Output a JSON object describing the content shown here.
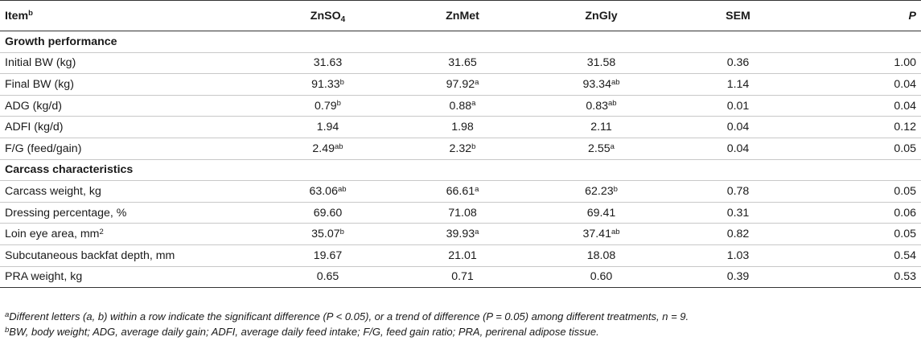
{
  "header": {
    "item": "Item",
    "item_sup": "b",
    "znso4_base": "ZnSO",
    "znso4_sub": "4",
    "znmet": "ZnMet",
    "zngly": "ZnGly",
    "sem": "SEM",
    "p": "P"
  },
  "sections": [
    {
      "title": "Growth performance",
      "rows": [
        {
          "item": "Initial BW (kg)",
          "item_sup": "",
          "znso4": "31.63",
          "znso4_sup": "",
          "znmet": "31.65",
          "znmet_sup": "",
          "zngly": "31.58",
          "zngly_sup": "",
          "sem": "0.36",
          "p": "1.00"
        },
        {
          "item": "Final BW (kg)",
          "item_sup": "",
          "znso4": "91.33",
          "znso4_sup": "b",
          "znmet": "97.92",
          "znmet_sup": "a",
          "zngly": "93.34",
          "zngly_sup": "ab",
          "sem": "1.14",
          "p": "0.04"
        },
        {
          "item": "ADG (kg/d)",
          "item_sup": "",
          "znso4": "0.79",
          "znso4_sup": "b",
          "znmet": "0.88",
          "znmet_sup": "a",
          "zngly": "0.83",
          "zngly_sup": "ab",
          "sem": "0.01",
          "p": "0.04"
        },
        {
          "item": "ADFI (kg/d)",
          "item_sup": "",
          "znso4": "1.94",
          "znso4_sup": "",
          "znmet": "1.98",
          "znmet_sup": "",
          "zngly": "2.11",
          "zngly_sup": "",
          "sem": "0.04",
          "p": "0.12"
        },
        {
          "item": "F/G (feed/gain)",
          "item_sup": "",
          "znso4": "2.49",
          "znso4_sup": "ab",
          "znmet": "2.32",
          "znmet_sup": "b",
          "zngly": "2.55",
          "zngly_sup": "a",
          "sem": "0.04",
          "p": "0.05"
        }
      ]
    },
    {
      "title": "Carcass characteristics",
      "rows": [
        {
          "item": "Carcass weight, kg",
          "item_sup": "",
          "znso4": "63.06",
          "znso4_sup": "ab",
          "znmet": "66.61",
          "znmet_sup": "a",
          "zngly": "62.23",
          "zngly_sup": "b",
          "sem": "0.78",
          "p": "0.05"
        },
        {
          "item": "Dressing percentage, %",
          "item_sup": "",
          "znso4": "69.60",
          "znso4_sup": "",
          "znmet": "71.08",
          "znmet_sup": "",
          "zngly": "69.41",
          "zngly_sup": "",
          "sem": "0.31",
          "p": "0.06"
        },
        {
          "item": "Loin eye area, mm",
          "item_sup": "2",
          "znso4": "35.07",
          "znso4_sup": "b",
          "znmet": "39.93",
          "znmet_sup": "a",
          "zngly": "37.41",
          "zngly_sup": "ab",
          "sem": "0.82",
          "p": "0.05"
        },
        {
          "item": "Subcutaneous backfat depth, mm",
          "item_sup": "",
          "znso4": "19.67",
          "znso4_sup": "",
          "znmet": "21.01",
          "znmet_sup": "",
          "zngly": "18.08",
          "zngly_sup": "",
          "sem": "1.03",
          "p": "0.54"
        },
        {
          "item": "PRA weight, kg",
          "item_sup": "",
          "znso4": "0.65",
          "znso4_sup": "",
          "znmet": "0.71",
          "znmet_sup": "",
          "zngly": "0.60",
          "zngly_sup": "",
          "sem": "0.39",
          "p": "0.53"
        }
      ]
    }
  ],
  "footnotes": {
    "a_mark": "a",
    "a_text": "Different letters (a, b) within a row indicate the significant difference (P < 0.05), or a trend of difference (P = 0.05) among different treatments, n = 9.",
    "b_mark": "b",
    "b_text": "BW, body weight; ADG, average daily gain; ADFI, average daily feed intake; F/G, feed gain ratio; PRA, perirenal adipose tissue."
  }
}
